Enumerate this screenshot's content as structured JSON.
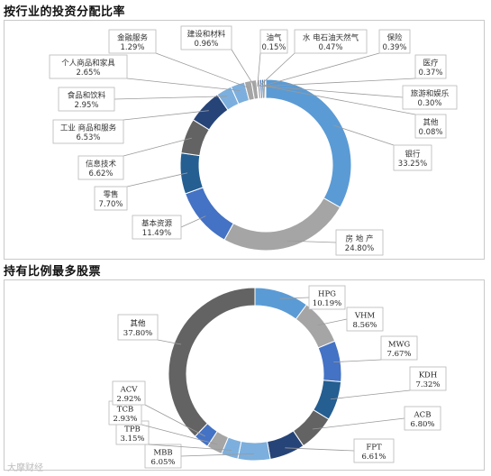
{
  "colors": {
    "blue": "#5B9BD5",
    "gray": "#A5A5A5",
    "royal": "#4472C4",
    "navy": "#255E91",
    "darkgray": "#636363",
    "darkblue": "#264478",
    "lightblue": "#7CAFDD"
  },
  "chart_data": [
    {
      "type": "pie",
      "title": "按行业的投资分配比率",
      "series": [
        {
          "name": "银行",
          "value": 33.25,
          "label": "33.25%"
        },
        {
          "name": "房 地 产",
          "value": 24.8,
          "label": "24.80%"
        },
        {
          "name": "基本资源",
          "value": 11.49,
          "label": "11.49%"
        },
        {
          "name": "零售",
          "value": 7.7,
          "label": "7.70%"
        },
        {
          "name": "信息技术",
          "value": 6.62,
          "label": "6.62%"
        },
        {
          "name": "工业 商品和服务",
          "value": 6.53,
          "label": "6.53%"
        },
        {
          "name": "食品和饮料",
          "value": 2.95,
          "label": "2.95%"
        },
        {
          "name": "个人商品和家具",
          "value": 2.65,
          "label": "2.65%"
        },
        {
          "name": "金融服务",
          "value": 1.29,
          "label": "1.29%"
        },
        {
          "name": "建设和材料",
          "value": 0.96,
          "label": "0.96%"
        },
        {
          "name": "油气",
          "value": 0.15,
          "label": "0.15%"
        },
        {
          "name": "水 电石油天然气",
          "value": 0.47,
          "label": "0.47%"
        },
        {
          "name": "保险",
          "value": 0.39,
          "label": "0.39%"
        },
        {
          "name": "医疗",
          "value": 0.37,
          "label": "0.37%"
        },
        {
          "name": "旅游和娱乐",
          "value": 0.3,
          "label": "0.30%"
        },
        {
          "name": "其他",
          "value": 0.08,
          "label": "0.08%"
        }
      ]
    },
    {
      "type": "pie",
      "title": "持有比例最多股票",
      "series": [
        {
          "name": "HPG",
          "value": 10.19,
          "label": "10.19%"
        },
        {
          "name": "VHM",
          "value": 8.56,
          "label": "8.56%"
        },
        {
          "name": "MWG",
          "value": 7.67,
          "label": "7.67%"
        },
        {
          "name": "KDH",
          "value": 7.32,
          "label": "7.32%"
        },
        {
          "name": "ACB",
          "value": 6.8,
          "label": "6.80%"
        },
        {
          "name": "FPT",
          "value": 6.61,
          "label": "6.61%"
        },
        {
          "name": "MBB",
          "value": 6.05,
          "label": "6.05%"
        },
        {
          "name": "TPB",
          "value": 3.15,
          "label": "3.15%"
        },
        {
          "name": "TCB",
          "value": 2.93,
          "label": "2.93%"
        },
        {
          "name": "ACV",
          "value": 2.92,
          "label": "2.92%"
        },
        {
          "name": "其他",
          "value": 37.8,
          "label": "37.80%"
        }
      ]
    }
  ],
  "watermark": "大摩财经"
}
